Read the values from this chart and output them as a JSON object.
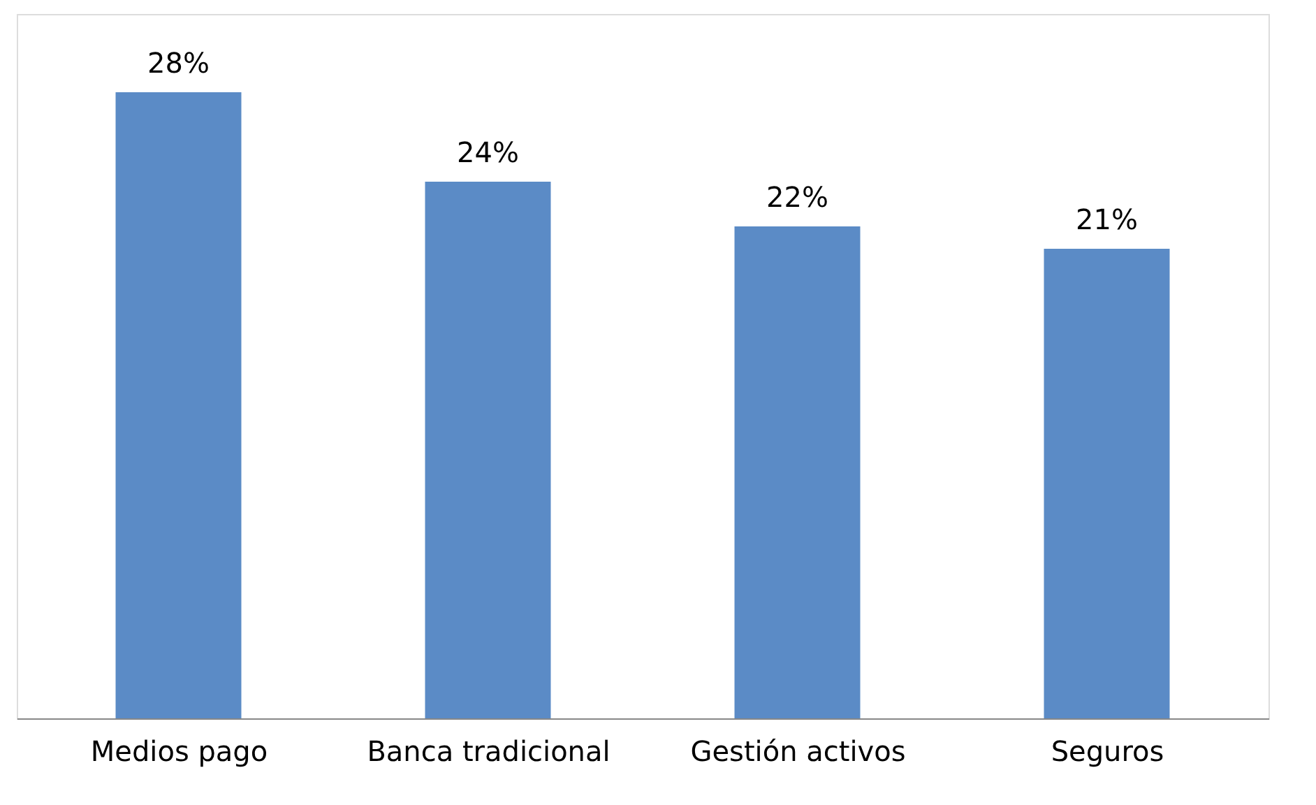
{
  "chart_data": {
    "type": "bar",
    "categories": [
      "Medios pago",
      "Banca tradicional",
      "Gestión activos",
      "Seguros"
    ],
    "values": [
      28,
      24,
      22,
      21
    ],
    "color": "#5b8bc6",
    "data_labels": true,
    "value_labels": [
      "28%",
      "24%",
      "22%",
      "21%"
    ],
    "ylim": [
      0,
      31.5
    ],
    "tick_labels": "x"
  }
}
